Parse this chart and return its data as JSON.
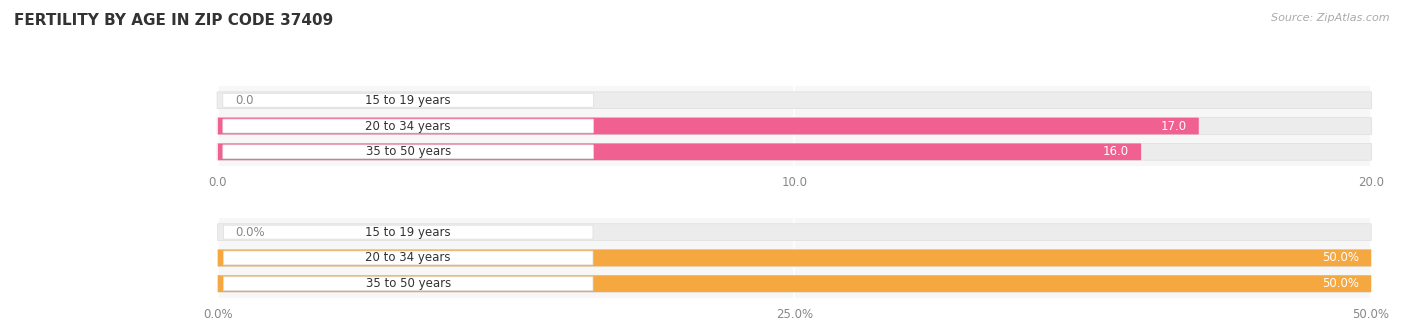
{
  "title": "FERTILITY BY AGE IN ZIP CODE 37409",
  "source": "Source: ZipAtlas.com",
  "background_color": "#ffffff",
  "chart_bg": "#f7f7f7",
  "label_box_color": "#ffffff",
  "label_text_color": "#333333",
  "top_chart": {
    "categories": [
      "15 to 19 years",
      "20 to 34 years",
      "35 to 50 years"
    ],
    "values": [
      0.0,
      17.0,
      16.0
    ],
    "xlim": [
      0,
      20
    ],
    "xticks": [
      0.0,
      10.0,
      20.0
    ],
    "xtick_labels": [
      "0.0",
      "10.0",
      "20.0"
    ],
    "bar_color": "#f06090",
    "bar_bg_color": "#eeeeee",
    "label_color_inside": "#ffffff",
    "label_color_outside": "#888888",
    "label_threshold": 1.5
  },
  "bottom_chart": {
    "categories": [
      "15 to 19 years",
      "20 to 34 years",
      "35 to 50 years"
    ],
    "values": [
      0.0,
      50.0,
      50.0
    ],
    "xlim": [
      0,
      50
    ],
    "xticks": [
      0.0,
      25.0,
      50.0
    ],
    "xtick_labels": [
      "0.0%",
      "25.0%",
      "50.0%"
    ],
    "bar_color": "#f5a840",
    "bar_bg_color": "#eeeeee",
    "label_color_inside": "#ffffff",
    "label_color_outside": "#888888",
    "label_threshold": 5.0
  }
}
